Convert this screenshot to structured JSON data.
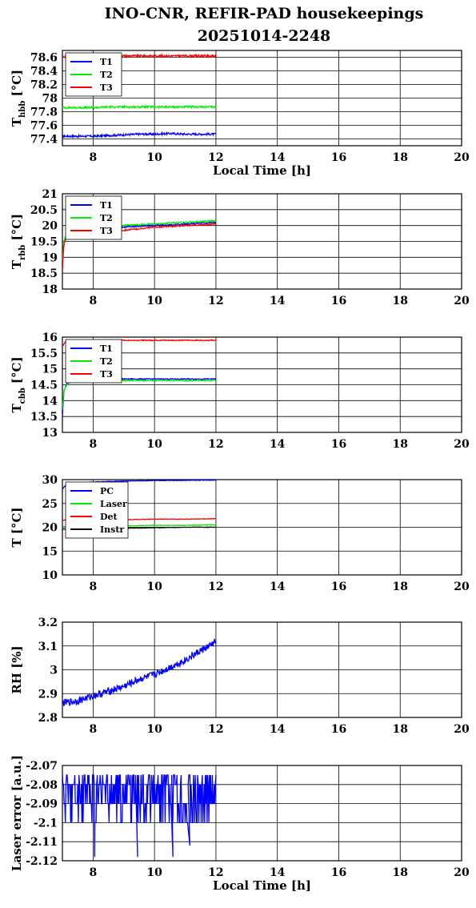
{
  "title_line1": "INO-CNR, REFIR-PAD housekeepings",
  "title_line2": "20251014-2248",
  "colors": {
    "blue": "#0000ff",
    "green": "#00ee00",
    "red": "#ff0000",
    "black": "#000000"
  },
  "chart_data": [
    {
      "type": "line",
      "ylabel_main": "T",
      "ylabel_sub": "hbb",
      "ylabel_unit": "[°C]",
      "xlabel": "Local Time [h]",
      "xlim": [
        7,
        20
      ],
      "ylim": [
        77.3,
        78.7
      ],
      "xticks": [
        "8",
        "10",
        "12",
        "14",
        "16",
        "18",
        "20"
      ],
      "yticks": [
        "77.4",
        "77.6",
        "77.8",
        "78",
        "78.2",
        "78.4",
        "78.6"
      ],
      "series": [
        {
          "name": "T1",
          "color": "blue",
          "x": [
            7.0,
            7.5,
            8.0,
            8.5,
            9.0,
            9.5,
            10.0,
            10.5,
            11.0,
            11.5,
            12.0
          ],
          "y": [
            77.44,
            77.44,
            77.44,
            77.45,
            77.46,
            77.47,
            77.47,
            77.48,
            77.47,
            77.47,
            77.47
          ],
          "noise": 0.015
        },
        {
          "name": "T2",
          "color": "green",
          "x": [
            7.0,
            7.5,
            8.0,
            8.5,
            9.0,
            9.5,
            10.0,
            10.5,
            11.0,
            11.5,
            12.0
          ],
          "y": [
            77.86,
            77.86,
            77.86,
            77.87,
            77.87,
            77.87,
            77.87,
            77.87,
            77.87,
            77.87,
            77.87
          ],
          "noise": 0.015
        },
        {
          "name": "T3",
          "color": "red",
          "x": [
            7.0,
            7.5,
            8.0,
            8.5,
            9.0,
            9.5,
            10.0,
            10.5,
            11.0,
            11.5,
            12.0
          ],
          "y": [
            78.61,
            78.61,
            78.61,
            78.62,
            78.62,
            78.62,
            78.62,
            78.62,
            78.62,
            78.62,
            78.62
          ],
          "noise": 0.015
        }
      ]
    },
    {
      "type": "line",
      "ylabel_main": "T",
      "ylabel_sub": "rbb",
      "ylabel_unit": "[°C]",
      "xlabel": "",
      "xlim": [
        7,
        20
      ],
      "ylim": [
        18,
        21
      ],
      "xticks": [
        "8",
        "10",
        "12",
        "14",
        "16",
        "18",
        "20"
      ],
      "yticks": [
        "18",
        "18.5",
        "19",
        "19.5",
        "20",
        "20.5",
        "21"
      ],
      "series": [
        {
          "name": "T1",
          "color": "blue",
          "x": [
            7.0,
            7.05,
            7.15,
            7.5,
            8.0,
            8.5,
            9.0,
            9.5,
            10.0,
            10.5,
            11.0,
            11.5,
            12.0
          ],
          "y": [
            18.9,
            19.5,
            19.8,
            19.85,
            19.9,
            19.93,
            19.95,
            19.98,
            20.0,
            20.02,
            20.05,
            20.08,
            20.1
          ],
          "noise": 0.02
        },
        {
          "name": "T2",
          "color": "green",
          "x": [
            7.0,
            7.05,
            7.15,
            7.5,
            8.0,
            8.5,
            9.0,
            9.5,
            10.0,
            10.5,
            11.0,
            11.5,
            12.0
          ],
          "y": [
            18.9,
            19.5,
            19.8,
            19.87,
            19.93,
            19.97,
            20.0,
            20.03,
            20.05,
            20.08,
            20.1,
            20.13,
            20.15
          ],
          "noise": 0.02
        },
        {
          "name": "T3",
          "color": "red",
          "x": [
            7.0,
            7.05,
            7.15,
            7.5,
            8.0,
            8.5,
            9.0,
            9.5,
            10.0,
            10.5,
            11.0,
            11.5,
            12.0
          ],
          "y": [
            18.6,
            19.4,
            19.7,
            19.82,
            19.85,
            19.85,
            19.85,
            19.9,
            19.95,
            19.97,
            20.0,
            20.02,
            20.05
          ],
          "noise": 0.02
        }
      ]
    },
    {
      "type": "line",
      "ylabel_main": "T",
      "ylabel_sub": "cbb",
      "ylabel_unit": "[°C]",
      "xlabel": "",
      "xlim": [
        7,
        20
      ],
      "ylim": [
        13,
        16
      ],
      "xticks": [
        "8",
        "10",
        "12",
        "14",
        "16",
        "18",
        "20"
      ],
      "yticks": [
        "13",
        "13.5",
        "14",
        "14.5",
        "15",
        "15.5",
        "16"
      ],
      "series": [
        {
          "name": "T1",
          "color": "blue",
          "x": [
            7.0,
            7.05,
            7.15,
            7.3,
            8.0,
            9.0,
            10.0,
            11.0,
            12.0
          ],
          "y": [
            13.5,
            14.3,
            14.55,
            14.65,
            14.68,
            14.68,
            14.68,
            14.68,
            14.68
          ],
          "noise": 0.015
        },
        {
          "name": "T2",
          "color": "green",
          "x": [
            7.0,
            7.05,
            7.15,
            7.3,
            8.0,
            9.0,
            10.0,
            11.0,
            12.0
          ],
          "y": [
            13.7,
            14.3,
            14.5,
            14.6,
            14.63,
            14.63,
            14.63,
            14.63,
            14.63
          ],
          "noise": 0.015
        },
        {
          "name": "T3",
          "color": "red",
          "x": [
            7.0,
            7.1,
            7.3,
            8.0,
            9.0,
            10.0,
            11.0,
            12.0
          ],
          "y": [
            15.7,
            15.85,
            15.88,
            15.89,
            15.9,
            15.9,
            15.9,
            15.9
          ],
          "noise": 0.015
        }
      ]
    },
    {
      "type": "line",
      "ylabel_main": "T [°C]",
      "ylabel_sub": "",
      "ylabel_unit": "",
      "xlabel": "",
      "xlim": [
        7,
        20
      ],
      "ylim": [
        10,
        30
      ],
      "xticks": [
        "8",
        "10",
        "12",
        "14",
        "16",
        "18",
        "20"
      ],
      "yticks": [
        "10",
        "15",
        "20",
        "25",
        "30"
      ],
      "series": [
        {
          "name": "PC",
          "color": "blue",
          "x": [
            7.0,
            7.1,
            7.5,
            8.0,
            9.0,
            10.0,
            11.0,
            12.0
          ],
          "y": [
            28.0,
            28.8,
            29.2,
            29.5,
            29.7,
            29.8,
            29.85,
            29.9
          ],
          "noise": 0.05
        },
        {
          "name": "Laser",
          "color": "green",
          "x": [
            7.0,
            8.0,
            9.0,
            10.0,
            11.0,
            12.0
          ],
          "y": [
            20.1,
            20.2,
            20.3,
            20.4,
            20.4,
            20.5
          ],
          "noise": 0.05
        },
        {
          "name": "Det",
          "color": "red",
          "x": [
            7.0,
            8.0,
            9.0,
            10.0,
            11.0,
            12.0
          ],
          "y": [
            21.5,
            21.6,
            21.6,
            21.7,
            21.7,
            21.8
          ],
          "noise": 0.05
        },
        {
          "name": "Instr",
          "color": "black",
          "x": [
            7.0,
            8.0,
            9.0,
            10.0,
            11.0,
            12.0
          ],
          "y": [
            19.6,
            19.7,
            19.8,
            19.9,
            20.0,
            20.0
          ],
          "noise": 0.05
        }
      ]
    },
    {
      "type": "line",
      "ylabel_main": "RH [%]",
      "ylabel_sub": "",
      "ylabel_unit": "",
      "xlabel": "",
      "xlim": [
        7,
        20
      ],
      "ylim": [
        2.8,
        3.2
      ],
      "xticks": [
        "8",
        "10",
        "12",
        "14",
        "16",
        "18",
        "20"
      ],
      "yticks": [
        "2.8",
        "2.9",
        "3",
        "3.1",
        "3.2"
      ],
      "series": [
        {
          "name": "",
          "color": "blue",
          "x": [
            7.0,
            7.5,
            8.0,
            8.5,
            9.0,
            9.5,
            10.0,
            10.5,
            11.0,
            11.5,
            11.8,
            12.0
          ],
          "y": [
            2.86,
            2.87,
            2.89,
            2.91,
            2.93,
            2.96,
            2.98,
            3.01,
            3.04,
            3.08,
            3.1,
            3.12
          ],
          "noise": 0.015
        }
      ]
    },
    {
      "type": "line",
      "ylabel_main": "Laser error [a.u.]",
      "ylabel_sub": "",
      "ylabel_unit": "",
      "xlabel": "Local Time [h]",
      "xlim": [
        7,
        20
      ],
      "ylim": [
        -2.12,
        -2.07
      ],
      "xticks": [
        "8",
        "10",
        "12",
        "14",
        "16",
        "18",
        "20"
      ],
      "yticks": [
        "-2.07",
        "-2.08",
        "-2.09",
        "-2.1",
        "-2.11",
        "-2.12"
      ],
      "series": [
        {
          "name": "",
          "color": "blue",
          "x": [
            7.0,
            12.0
          ],
          "y": [
            -2.09,
            -2.09
          ],
          "levels": [
            -2.075,
            -2.08,
            -2.09,
            -2.1
          ],
          "spikes": [
            [
              8.05,
              -2.118
            ],
            [
              9.45,
              -2.118
            ],
            [
              10.6,
              -2.118
            ],
            [
              11.15,
              -2.112
            ]
          ]
        }
      ]
    }
  ]
}
